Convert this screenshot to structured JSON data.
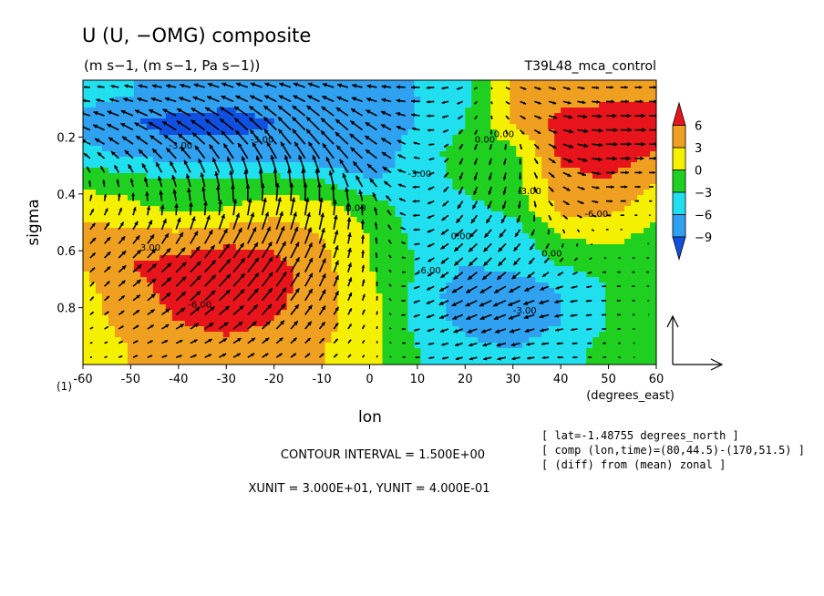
{
  "chart_data": {
    "type": "heatmap",
    "title": "U (U, −OMG) composite",
    "subtitle": "(m s−1, (m s−1, Pa s−1))",
    "run_label": "T39L48_mca_control",
    "xlabel": "lon",
    "xunit_label": "(degrees_east)",
    "ylabel": "sigma",
    "x_ticks": [
      -60,
      -50,
      -40,
      -30,
      -20,
      -10,
      0,
      10,
      20,
      30,
      40,
      50,
      60
    ],
    "y_ticks": [
      0.2,
      0.4,
      0.6,
      0.8
    ],
    "y_bottom_label": "(1)",
    "xlim": [
      -60,
      60
    ],
    "ylim": [
      0.0,
      1.0
    ],
    "y_inverted": true,
    "colorbar": {
      "levels": [
        6,
        3,
        0,
        -3,
        -6,
        -9
      ],
      "colors": [
        "#e8141c",
        "#f0a020",
        "#f5f000",
        "#20d020",
        "#20e0f0",
        "#30a0f0",
        "#1050e0"
      ]
    },
    "contour_labels": [
      "-3.00",
      "-3.00",
      "0.00",
      "-6.00",
      "0.00",
      "0.00",
      "-3.00",
      "0.00",
      "-6.00",
      "0.00",
      "-3.00",
      "-6.00",
      "3.00",
      "-3.00"
    ],
    "contour_interval": "CONTOUR INTERVAL = 1.500E+00",
    "units_line": "XUNIT = 3.000E+01, YUNIT = 4.000E-01",
    "info": [
      "[ lat=-1.48755 degrees_north ]",
      "[ comp (lon,time)=(80,44.5)-(170,51.5) ]",
      "[ (diff) from (mean) zonal ]"
    ],
    "field": {
      "x": [
        -60,
        -50,
        -40,
        -30,
        -20,
        -10,
        0,
        10,
        20,
        30,
        40,
        50,
        60
      ],
      "y": [
        0.05,
        0.15,
        0.25,
        0.35,
        0.45,
        0.55,
        0.65,
        0.75,
        0.85,
        0.95
      ],
      "z": [
        [
          -4,
          -6,
          -7,
          -8,
          -8,
          -8,
          -7,
          -6,
          -4,
          4,
          5,
          5,
          5
        ],
        [
          -8,
          -9,
          -10,
          -10,
          -9,
          -9,
          -8,
          -6,
          -3,
          3,
          7,
          8,
          8
        ],
        [
          -5,
          -7,
          -8,
          -8,
          -8,
          -9,
          -9,
          -4,
          -2,
          -1,
          7,
          8,
          6
        ],
        [
          -1,
          -2,
          -3,
          -3,
          -2,
          -3,
          -6,
          -5,
          -2,
          -1,
          5,
          6,
          3
        ],
        [
          2,
          1,
          -1,
          0,
          2,
          1,
          -1,
          -5,
          -4,
          -2,
          4,
          4,
          1
        ],
        [
          4,
          4,
          4,
          5,
          5,
          3,
          0,
          -4,
          -6,
          -5,
          0,
          1,
          -1
        ],
        [
          3,
          6,
          7,
          8,
          7,
          4,
          0,
          -3,
          -6,
          -5,
          -3,
          -2,
          -2
        ],
        [
          2,
          5,
          7,
          8,
          7,
          4,
          1,
          -4,
          -8,
          -9,
          -6,
          -3,
          -1
        ],
        [
          2,
          4,
          6,
          7,
          6,
          4,
          1,
          -4,
          -7,
          -8,
          -6,
          -3,
          0
        ],
        [
          1,
          3,
          4,
          5,
          4,
          3,
          1,
          -3,
          -5,
          -6,
          -4,
          -2,
          0
        ]
      ]
    },
    "vector_field": {
      "x": [
        -60,
        -50,
        -40,
        -30,
        -20,
        -10,
        0,
        10,
        20,
        30,
        40,
        50,
        60
      ],
      "y": [
        0.05,
        0.15,
        0.25,
        0.35,
        0.45,
        0.55,
        0.65,
        0.75,
        0.85,
        0.95
      ],
      "u": [
        [
          -4,
          -6,
          -7,
          -8,
          -8,
          -8,
          -7,
          -6,
          -4,
          4,
          5,
          5,
          5
        ],
        [
          -8,
          -9,
          -10,
          -10,
          -9,
          -9,
          -8,
          -6,
          -3,
          3,
          7,
          8,
          8
        ],
        [
          -5,
          -7,
          -8,
          -8,
          -8,
          -9,
          -9,
          -4,
          -2,
          -1,
          7,
          8,
          6
        ],
        [
          -1,
          -2,
          -3,
          -3,
          -2,
          -3,
          -6,
          -5,
          -2,
          -1,
          5,
          6,
          3
        ],
        [
          2,
          1,
          -1,
          0,
          2,
          1,
          -1,
          -5,
          -4,
          -2,
          4,
          4,
          1
        ],
        [
          4,
          4,
          4,
          5,
          5,
          3,
          0,
          -4,
          -6,
          -5,
          0,
          1,
          -1
        ],
        [
          3,
          6,
          7,
          8,
          7,
          4,
          0,
          -3,
          -6,
          -5,
          -3,
          -2,
          -2
        ],
        [
          2,
          5,
          7,
          8,
          7,
          4,
          1,
          -4,
          -8,
          -9,
          -6,
          -3,
          -1
        ],
        [
          2,
          4,
          6,
          7,
          6,
          4,
          1,
          -4,
          -7,
          -8,
          -6,
          -3,
          0
        ],
        [
          1,
          3,
          4,
          5,
          4,
          3,
          1,
          -3,
          -5,
          -6,
          -4,
          -2,
          0
        ]
      ],
      "w": [
        [
          0,
          1,
          1,
          2,
          2,
          2,
          1,
          0,
          -1,
          -1,
          -1,
          0,
          0
        ],
        [
          2,
          3,
          4,
          5,
          6,
          6,
          4,
          1,
          -2,
          -2,
          -1,
          0,
          0
        ],
        [
          2,
          4,
          5,
          7,
          8,
          8,
          5,
          1,
          -3,
          -3,
          -2,
          0,
          0
        ],
        [
          3,
          4,
          6,
          8,
          9,
          9,
          5,
          0,
          -4,
          -4,
          -2,
          0,
          0
        ],
        [
          3,
          4,
          6,
          8,
          9,
          9,
          5,
          0,
          -4,
          -4,
          -2,
          0,
          0
        ],
        [
          3,
          4,
          6,
          8,
          9,
          8,
          4,
          0,
          -4,
          -4,
          -2,
          0,
          0
        ],
        [
          2,
          4,
          5,
          7,
          8,
          7,
          3,
          -1,
          -4,
          -4,
          -2,
          0,
          0
        ],
        [
          2,
          3,
          5,
          6,
          7,
          6,
          3,
          -1,
          -3,
          -3,
          -1,
          0,
          0
        ],
        [
          1,
          2,
          3,
          4,
          5,
          4,
          2,
          -1,
          -2,
          -2,
          -1,
          0,
          0
        ],
        [
          0,
          1,
          1,
          2,
          2,
          2,
          1,
          0,
          -1,
          -1,
          0,
          0,
          0
        ]
      ]
    }
  }
}
